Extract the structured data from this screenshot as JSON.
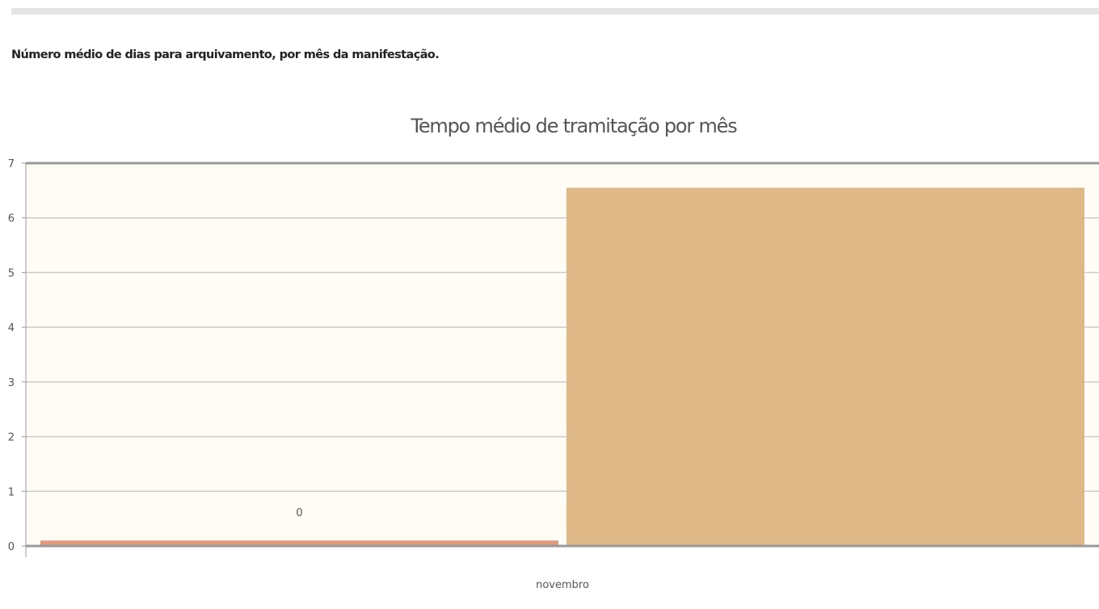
{
  "page": {
    "section_title": "Número médio de dias para arquivamento, por mês da manifestação."
  },
  "chart_data": {
    "type": "bar",
    "title": "Tempo médio de tramitação por mês",
    "categories": [
      "novembro"
    ],
    "series": [
      {
        "values": [
          0.1
        ],
        "color": "#e29a7f",
        "data_label": "0"
      },
      {
        "values": [
          6.55
        ],
        "color": "#deb887"
      }
    ],
    "ylim": [
      0,
      7
    ],
    "yticks": [
      0,
      1,
      2,
      3,
      4,
      5,
      6,
      7
    ],
    "grid": true,
    "plot_background": "#fffcf5",
    "grid_color": "#cccccc",
    "axis_color": "#999999"
  }
}
